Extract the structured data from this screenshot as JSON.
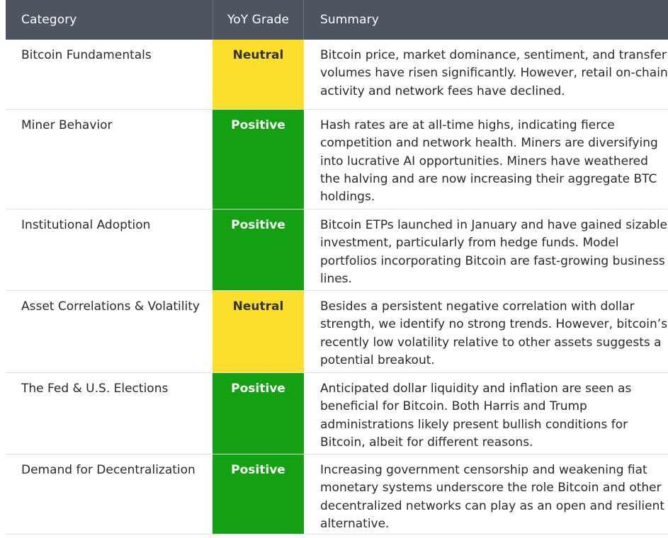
{
  "header": {
    "category": "Category",
    "grade": "YoY Grade",
    "summary": "Summary"
  },
  "colors": {
    "header_bg": "#4d5561",
    "neutral": "#fddf2b",
    "positive": "#13a113"
  },
  "rows": [
    {
      "category": "Bitcoin Fundamentals",
      "grade": "Neutral",
      "summary": "Bitcoin price, market dominance, sentiment, and transfer volumes have risen significantly. However, retail on-chain activity and network fees have declined."
    },
    {
      "category": "Miner Behavior",
      "grade": "Positive",
      "summary": "Hash rates are at all-time highs, indicating fierce competition and network health. Miners are diversifying into lucrative AI opportunities. Miners have weathered the halving and are now increasing their aggregate BTC holdings."
    },
    {
      "category": "Institutional Adoption",
      "grade": "Positive",
      "summary": "Bitcoin ETPs launched in January and have gained sizable investment, particularly from hedge funds. Model portfolios incorporating Bitcoin are fast-growing business lines."
    },
    {
      "category": "Asset Correlations & Volatility",
      "grade": "Neutral",
      "summary": "Besides a persistent negative correlation with dollar strength, we identify no strong trends. However, bitcoin’s recently low volatility relative to other assets suggests a potential breakout."
    },
    {
      "category": "The Fed & U.S. Elections",
      "grade": "Positive",
      "summary": "Anticipated dollar liquidity and inflation are seen as beneficial for Bitcoin. Both Harris and Trump administrations likely present bullish conditions for Bitcoin, albeit for different reasons."
    },
    {
      "category": "Demand for Decentralization",
      "grade": "Positive",
      "summary": "Increasing government censorship and weakening fiat monetary systems underscore the role Bitcoin and other decentralized networks can play as an open and resilient alternative."
    }
  ]
}
